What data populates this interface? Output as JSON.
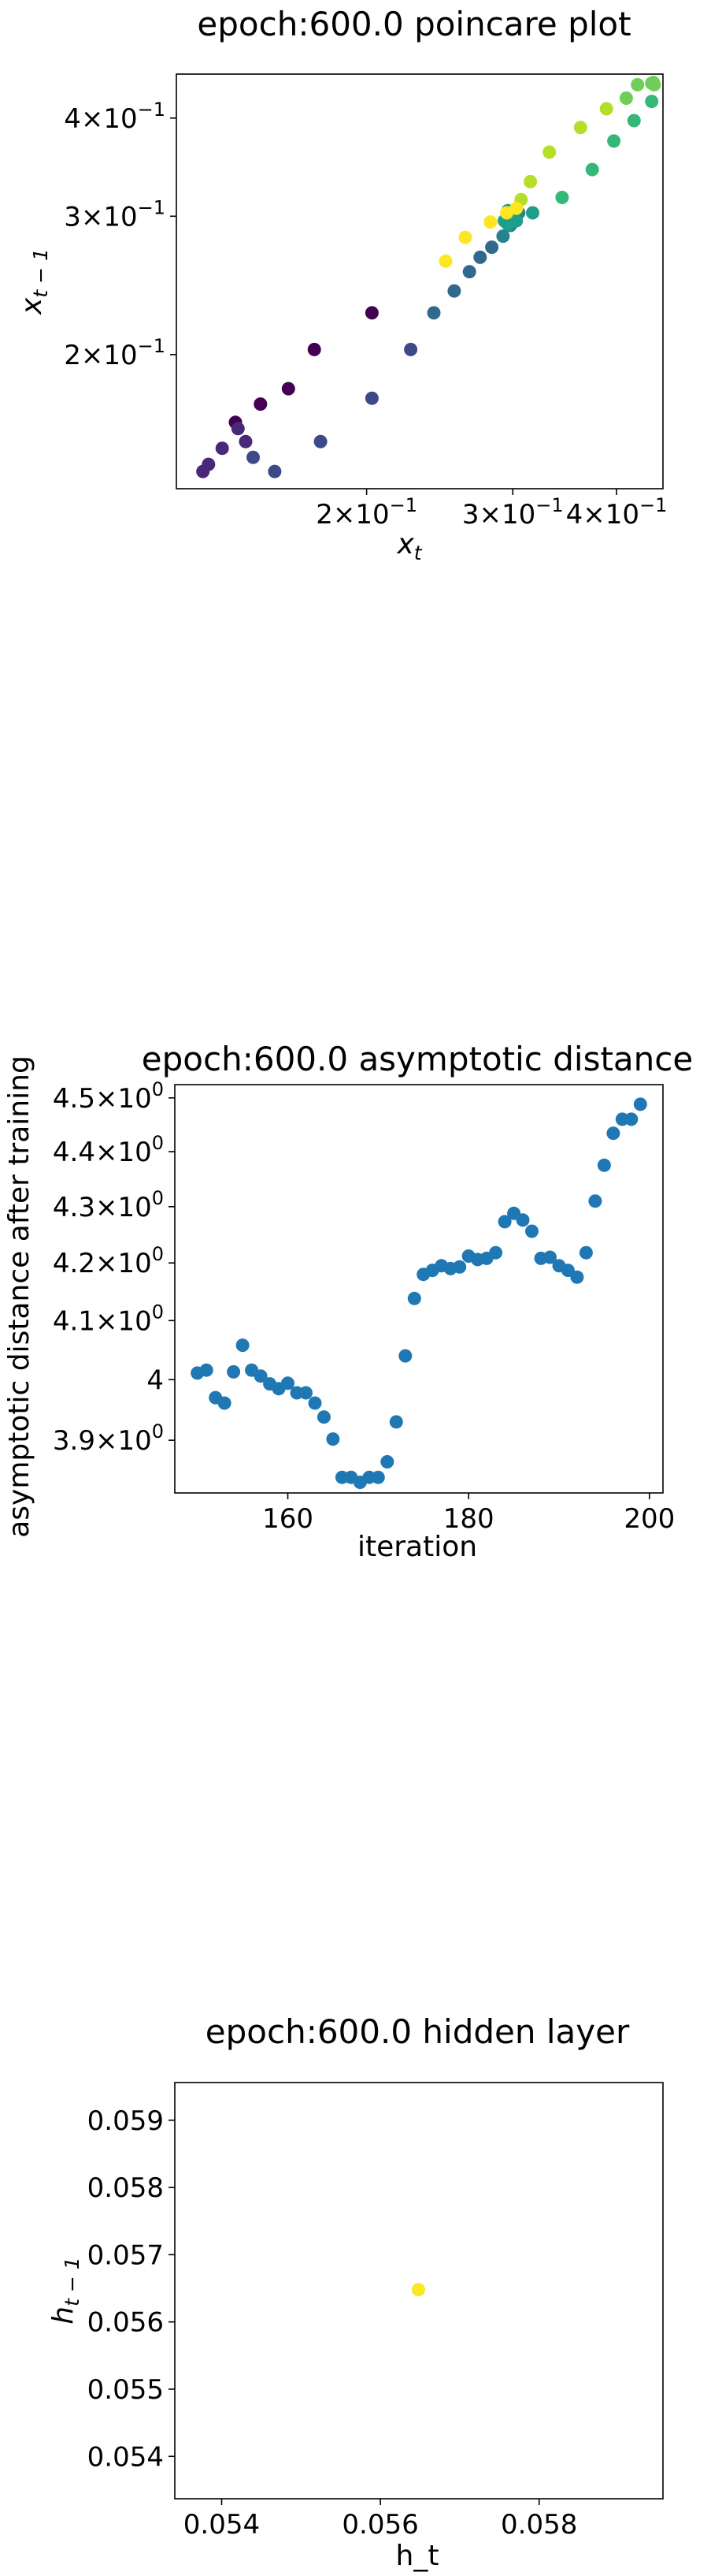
{
  "colors": {
    "series_blue": "#1f77b4",
    "single_point": "#fde725",
    "viridis": [
      "#440154",
      "#482878",
      "#3e4989",
      "#31688e",
      "#26828e",
      "#1f9e89",
      "#35b779",
      "#6ece58",
      "#b5de2b",
      "#fde725"
    ]
  },
  "chart_data": [
    {
      "type": "scatter",
      "title": "epoch:600.0 poincare plot",
      "xlabel": "x_t",
      "ylabel": "x_{t-1}",
      "xscale": "log",
      "yscale": "log",
      "xlim": [
        0.118,
        0.455
      ],
      "ylim": [
        0.135,
        0.455
      ],
      "colormap": "viridis",
      "x_ticks": [
        {
          "value": 0.2,
          "label": "2×10",
          "exp": "−1"
        },
        {
          "value": 0.3,
          "label": "3×10",
          "exp": "−1"
        },
        {
          "value": 0.4,
          "label": "4×10",
          "exp": "−1"
        }
      ],
      "y_ticks": [
        {
          "value": 0.2,
          "label": "2×10",
          "exp": "−1"
        },
        {
          "value": 0.3,
          "label": "3×10",
          "exp": "−1"
        },
        {
          "value": 0.4,
          "label": "4×10",
          "exp": "−1"
        }
      ],
      "x": [
        0.203,
        0.173,
        0.161,
        0.149,
        0.139,
        0.134,
        0.129,
        0.127,
        0.14,
        0.143,
        0.146,
        0.155,
        0.176,
        0.203,
        0.226,
        0.241,
        0.255,
        0.266,
        0.274,
        0.283,
        0.292,
        0.298,
        0.301,
        0.303,
        0.305,
        0.296,
        0.293,
        0.296,
        0.303,
        0.317,
        0.344,
        0.374,
        0.397,
        0.42,
        0.441,
        0.444,
        0.443,
        0.441,
        0.424,
        0.411,
        0.389,
        0.362,
        0.332,
        0.315,
        0.307,
        0.303,
        0.295,
        0.282,
        0.263,
        0.249
      ],
      "y": [
        0.226,
        0.203,
        0.181,
        0.173,
        0.164,
        0.152,
        0.145,
        0.142,
        0.161,
        0.155,
        0.148,
        0.142,
        0.155,
        0.176,
        0.203,
        0.226,
        0.241,
        0.255,
        0.266,
        0.274,
        0.283,
        0.292,
        0.298,
        0.301,
        0.303,
        0.305,
        0.296,
        0.293,
        0.296,
        0.303,
        0.317,
        0.344,
        0.374,
        0.397,
        0.42,
        0.441,
        0.444,
        0.443,
        0.441,
        0.424,
        0.411,
        0.389,
        0.362,
        0.332,
        0.315,
        0.307,
        0.303,
        0.295,
        0.282,
        0.263
      ]
    },
    {
      "type": "scatter",
      "title": "epoch:600.0 asymptotic distance",
      "xlabel": "iteration",
      "ylabel": "asymptotic distance after training",
      "yscale": "log",
      "xlim": [
        147.5,
        201.5
      ],
      "ylim": [
        3.815,
        4.525
      ],
      "x_ticks": [
        {
          "value": 160,
          "label": "160"
        },
        {
          "value": 180,
          "label": "180"
        },
        {
          "value": 200,
          "label": "200"
        }
      ],
      "y_ticks": [
        {
          "value": 3.9,
          "label": "3.9×10",
          "exp": "0"
        },
        {
          "value": 4.0,
          "label": "4",
          "exp": ""
        },
        {
          "value": 4.1,
          "label": "4.1×10",
          "exp": "0"
        },
        {
          "value": 4.2,
          "label": "4.2×10",
          "exp": "0"
        },
        {
          "value": 4.3,
          "label": "4.3×10",
          "exp": "0"
        },
        {
          "value": 4.4,
          "label": "4.4×10",
          "exp": "0"
        },
        {
          "value": 4.5,
          "label": "4.5×10",
          "exp": "0"
        }
      ],
      "x": [
        150,
        151,
        152,
        153,
        154,
        155,
        156,
        157,
        158,
        159,
        160,
        161,
        162,
        163,
        164,
        165,
        166,
        167,
        168,
        169,
        170,
        171,
        172,
        173,
        174,
        175,
        176,
        177,
        178,
        179,
        180,
        181,
        182,
        183,
        184,
        185,
        186,
        187,
        188,
        189,
        190,
        191,
        192,
        193,
        194,
        195,
        196,
        197,
        198,
        199
      ],
      "y": [
        4.011,
        4.016,
        3.97,
        3.961,
        4.013,
        4.058,
        4.016,
        4.006,
        3.993,
        3.985,
        3.994,
        3.978,
        3.978,
        3.961,
        3.938,
        3.902,
        3.84,
        3.84,
        3.832,
        3.84,
        3.84,
        3.865,
        3.93,
        4.04,
        4.138,
        4.18,
        4.187,
        4.195,
        4.19,
        4.193,
        4.212,
        4.206,
        4.208,
        4.218,
        4.273,
        4.288,
        4.276,
        4.256,
        4.208,
        4.21,
        4.195,
        4.187,
        4.175,
        4.218,
        4.31,
        4.375,
        4.434,
        4.46,
        4.46,
        4.488
      ]
    },
    {
      "type": "scatter",
      "title": "epoch:600.0 hidden layer",
      "xlabel": "h_t",
      "ylabel": "h_{t-1}",
      "xlim": [
        0.05341,
        0.05956
      ],
      "ylim": [
        0.05337,
        0.05956
      ],
      "x_ticks": [
        {
          "value": 0.054,
          "label": "0.054"
        },
        {
          "value": 0.056,
          "label": "0.056"
        },
        {
          "value": 0.058,
          "label": "0.058"
        }
      ],
      "y_ticks": [
        {
          "value": 0.054,
          "label": "0.054"
        },
        {
          "value": 0.055,
          "label": "0.055"
        },
        {
          "value": 0.056,
          "label": "0.056"
        },
        {
          "value": 0.057,
          "label": "0.057"
        },
        {
          "value": 0.058,
          "label": "0.058"
        },
        {
          "value": 0.059,
          "label": "0.059"
        }
      ],
      "x": [
        0.05648
      ],
      "y": [
        0.05648
      ]
    }
  ]
}
